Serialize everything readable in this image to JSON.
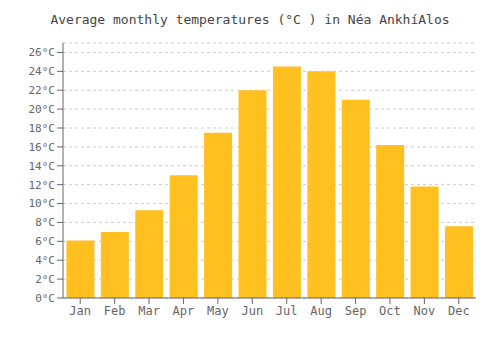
{
  "chart_data": {
    "type": "bar",
    "title": "Average monthly temperatures (°C ) in Néa AnkhíAlos",
    "categories": [
      "Jan",
      "Feb",
      "Mar",
      "Apr",
      "May",
      "Jun",
      "Jul",
      "Aug",
      "Sep",
      "Oct",
      "Nov",
      "Dec"
    ],
    "values": [
      6.1,
      7.0,
      9.3,
      13.0,
      17.5,
      22.0,
      24.5,
      24.0,
      21.0,
      16.2,
      11.8,
      7.6
    ],
    "color": "#FFC020",
    "ylim": [
      0,
      27
    ],
    "yticks": [
      {
        "value": 0,
        "label": "0°C"
      },
      {
        "value": 2,
        "label": "2°C"
      },
      {
        "value": 4,
        "label": "4°C"
      },
      {
        "value": 6,
        "label": "6°C"
      },
      {
        "value": 8,
        "label": "8°C"
      },
      {
        "value": 10,
        "label": "10°C"
      },
      {
        "value": 12,
        "label": "12°C"
      },
      {
        "value": 14,
        "label": "14°C"
      },
      {
        "value": 16,
        "label": "16°C"
      },
      {
        "value": 18,
        "label": "18°C"
      },
      {
        "value": 20,
        "label": "20°C"
      },
      {
        "value": 22,
        "label": "22°C"
      },
      {
        "value": 24,
        "label": "24°C"
      },
      {
        "value": 26,
        "label": "26°C"
      }
    ],
    "grid": true
  }
}
